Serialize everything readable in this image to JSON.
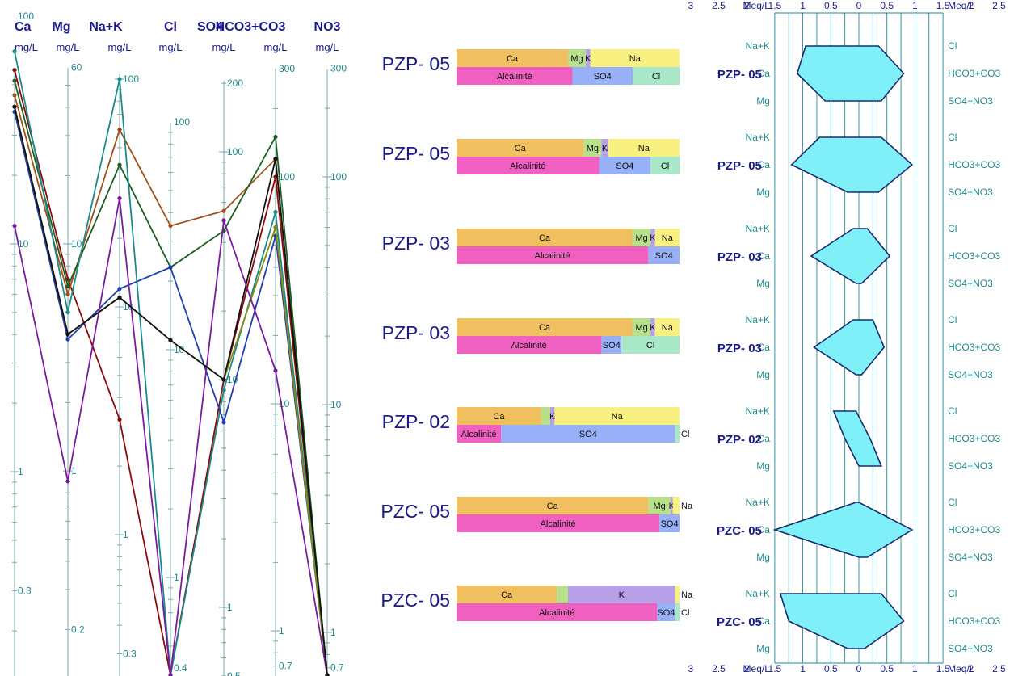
{
  "chart_data": [
    {
      "type": "line",
      "columns": [
        {
          "name": "Ca",
          "unit": "mg/L",
          "ticks": [
            {
              "v": 100,
              "label": "100"
            },
            {
              "v": 10,
              "label": "10"
            },
            {
              "v": 1,
              "label": "1"
            },
            {
              "v": 0.3,
              "label": "0.3"
            }
          ]
        },
        {
          "name": "Mg",
          "unit": "mg/L",
          "ticks": [
            {
              "v": 60,
              "label": "60"
            },
            {
              "v": 10,
              "label": "10"
            },
            {
              "v": 1,
              "label": "1"
            },
            {
              "v": 0.2,
              "label": "0.2"
            }
          ]
        },
        {
          "name": "Na+K",
          "unit": "mg/L",
          "ticks": [
            {
              "v": 100,
              "label": "100"
            },
            {
              "v": 10,
              "label": "10"
            },
            {
              "v": 1,
              "label": "1"
            },
            {
              "v": 0.3,
              "label": "0.3"
            }
          ]
        },
        {
          "name": "Cl",
          "unit": "mg/L",
          "ticks": [
            {
              "v": 100,
              "label": "100"
            },
            {
              "v": 10,
              "label": "10"
            },
            {
              "v": 1,
              "label": "1"
            },
            {
              "v": 0.4,
              "label": "0.4"
            }
          ]
        },
        {
          "name": "SO4",
          "unit": "mg/L",
          "ticks": [
            {
              "v": 200,
              "label": "200"
            },
            {
              "v": 100,
              "label": "100"
            },
            {
              "v": 10,
              "label": "10"
            },
            {
              "v": 1,
              "label": "1"
            },
            {
              "v": 0.5,
              "label": "0.5"
            }
          ]
        },
        {
          "name": "HCO3+CO3",
          "unit": "mg/L",
          "ticks": [
            {
              "v": 300,
              "label": "300"
            },
            {
              "v": 100,
              "label": "100"
            },
            {
              "v": 10,
              "label": "10"
            },
            {
              "v": 1,
              "label": "1"
            },
            {
              "v": 0.7,
              "label": "0.7"
            }
          ]
        },
        {
          "name": "NO3",
          "unit": "mg/L",
          "ticks": [
            {
              "v": 300,
              "label": "300"
            },
            {
              "v": 100,
              "label": "100"
            },
            {
              "v": 10,
              "label": "10"
            },
            {
              "v": 1,
              "label": "1"
            },
            {
              "v": 0.7,
              "label": "0.7"
            }
          ]
        }
      ],
      "series": [
        {
          "color": "#8b0a0a",
          "values": [
            58,
            7,
            3.2,
            0.33,
            10,
            100,
            0.5
          ]
        },
        {
          "color": "#a0501a",
          "values": [
            45,
            6,
            60,
            35,
            55,
            120,
            0.5
          ]
        },
        {
          "color": "#1b5e20",
          "values": [
            52,
            6.5,
            42,
            23,
            45,
            150,
            0.5
          ]
        },
        {
          "color": "#1a8a8a",
          "values": [
            70,
            5,
            100,
            0.32,
            9,
            70,
            0.5
          ]
        },
        {
          "color": "#1f3fb0",
          "values": [
            38,
            3.8,
            12,
            23,
            6.5,
            55,
            0.5
          ]
        },
        {
          "color": "#8a8a10",
          "values": [
            40,
            4,
            11,
            11,
            10,
            60,
            0.5
          ]
        },
        {
          "color": "#7a1aa0",
          "values": [
            12,
            0.9,
            30,
            0.3,
            50,
            14,
            0.5
          ]
        },
        {
          "color": "#111111",
          "values": [
            40,
            4,
            11,
            11,
            10,
            120,
            0.5
          ]
        }
      ]
    },
    {
      "type": "bar",
      "samples": [
        {
          "name": "PZP- 05",
          "cations": [
            {
              "label": "Ca",
              "value": 50,
              "color": "#f0c060"
            },
            {
              "label": "Mg",
              "value": 8,
              "color": "#b8e08a"
            },
            {
              "label": "K",
              "value": 2,
              "color": "#b8a0e8"
            },
            {
              "label": "Na",
              "value": 40,
              "color": "#f8f080"
            }
          ],
          "anions": [
            {
              "label": "Alcalinité",
              "value": 52,
              "color": "#f060c0"
            },
            {
              "label": "SO4",
              "value": 27,
              "color": "#98b0f8"
            },
            {
              "label": "Cl",
              "value": 21,
              "color": "#a8e8c8"
            }
          ]
        },
        {
          "name": "PZP- 05",
          "cations": [
            {
              "label": "Ca",
              "value": 57,
              "color": "#f0c060"
            },
            {
              "label": "Mg",
              "value": 8,
              "color": "#b8e08a"
            },
            {
              "label": "K",
              "value": 3,
              "color": "#b8a0e8"
            },
            {
              "label": "Na",
              "value": 32,
              "color": "#f8f080"
            }
          ],
          "anions": [
            {
              "label": "Alcalinité",
              "value": 64,
              "color": "#f060c0"
            },
            {
              "label": "SO4",
              "value": 23,
              "color": "#98b0f8"
            },
            {
              "label": "Cl",
              "value": 13,
              "color": "#a8e8c8"
            }
          ]
        },
        {
          "name": "PZP- 03",
          "cations": [
            {
              "label": "Ca",
              "value": 79,
              "color": "#f0c060"
            },
            {
              "label": "Mg",
              "value": 8,
              "color": "#b8e08a"
            },
            {
              "label": "K",
              "value": 2,
              "color": "#b8a0e8"
            },
            {
              "label": "Na",
              "value": 11,
              "color": "#f8f080"
            }
          ],
          "anions": [
            {
              "label": "Alcalinité",
              "value": 86,
              "color": "#f060c0"
            },
            {
              "label": "SO4",
              "value": 14,
              "color": "#98b0f8"
            }
          ]
        },
        {
          "name": "PZP- 03",
          "cations": [
            {
              "label": "Ca",
              "value": 79,
              "color": "#f0c060"
            },
            {
              "label": "Mg",
              "value": 8,
              "color": "#b8e08a"
            },
            {
              "label": "K",
              "value": 2,
              "color": "#b8a0e8"
            },
            {
              "label": "Na",
              "value": 11,
              "color": "#f8f080"
            }
          ],
          "anions": [
            {
              "label": "Alcalinité",
              "value": 65,
              "color": "#f060c0"
            },
            {
              "label": "SO4",
              "value": 9,
              "color": "#98b0f8"
            },
            {
              "label": "Cl",
              "value": 26,
              "color": "#a8e8c8"
            }
          ]
        },
        {
          "name": "PZP- 02",
          "cations": [
            {
              "label": "Ca",
              "value": 38,
              "color": "#f0c060"
            },
            {
              "label": "Mg",
              "value": 4,
              "color": "#b8e08a"
            },
            {
              "label": "K",
              "value": 2,
              "color": "#b8a0e8"
            },
            {
              "label": "Na",
              "value": 56,
              "color": "#f8f080"
            }
          ],
          "anions": [
            {
              "label": "Alcalinité",
              "value": 20,
              "color": "#f060c0"
            },
            {
              "label": "SO4",
              "value": 78,
              "color": "#98b0f8"
            },
            {
              "label": "Cl",
              "value": 2,
              "color": "#a8e8c8"
            }
          ]
        },
        {
          "name": "PZC- 05",
          "cations": [
            {
              "label": "Ca",
              "value": 86,
              "color": "#f0c060"
            },
            {
              "label": "Mg",
              "value": 10,
              "color": "#b8e08a"
            },
            {
              "label": "K",
              "value": 1,
              "color": "#b8a0e8"
            },
            {
              "label": "Na",
              "value": 3,
              "color": "#f8f080"
            }
          ],
          "anions": [
            {
              "label": "Alcalinité",
              "value": 91,
              "color": "#f060c0"
            },
            {
              "label": "SO4",
              "value": 9,
              "color": "#98b0f8"
            }
          ]
        },
        {
          "name": "PZC- 05",
          "cations": [
            {
              "label": "Ca",
              "value": 45,
              "color": "#f0c060"
            },
            {
              "label": "Mg",
              "value": 5,
              "color": "#b8e08a"
            },
            {
              "label": "K",
              "value": 48,
              "color": "#b8a0e8"
            },
            {
              "label": "Na",
              "value": 2,
              "color": "#f8f080"
            }
          ],
          "anions": [
            {
              "label": "Alcalinité",
              "value": 90,
              "color": "#f060c0"
            },
            {
              "label": "SO4",
              "value": 8,
              "color": "#98b0f8"
            },
            {
              "label": "Cl",
              "value": 2,
              "color": "#a8e8c8"
            }
          ]
        }
      ]
    },
    {
      "type": "stiff",
      "axis_label": "Meq/L",
      "ticks": [
        "3",
        "2.5",
        "2",
        "1.5",
        "1",
        "0.5",
        "0",
        "0.5",
        "1",
        "1.5",
        "2",
        "2.5",
        "3"
      ],
      "left_ions": [
        "Na+K",
        "Ca",
        "Mg"
      ],
      "right_ions": [
        "Cl",
        "HCO3+CO3",
        "SO4+NO3"
      ],
      "fill_color": "#7ff0f8",
      "samples": [
        {
          "name": "PZP- 05",
          "cations": [
            1.9,
            2.2,
            1.2
          ],
          "anions": [
            0.7,
            1.6,
            0.8
          ]
        },
        {
          "name": "PZP- 05",
          "cations": [
            1.4,
            2.4,
            0.4
          ],
          "anions": [
            0.8,
            1.9,
            0.7
          ]
        },
        {
          "name": "PZP- 03",
          "cations": [
            0.2,
            1.7,
            0.1
          ],
          "anions": [
            0.3,
            1.1,
            0.1
          ]
        },
        {
          "name": "PZP- 03",
          "cations": [
            0.2,
            1.6,
            0.1
          ],
          "anions": [
            0.5,
            0.9,
            0.1
          ]
        },
        {
          "name": "PZP- 02",
          "cations": [
            0.9,
            0.5,
            0.0
          ],
          "anions": [
            -0.1,
            0.4,
            0.8
          ]
        },
        {
          "name": "PZC- 05",
          "cations": [
            0.1,
            3.0,
            0.0
          ],
          "anions": [
            0.0,
            1.9,
            0.3
          ]
        },
        {
          "name": "PZC- 05",
          "cations": [
            2.8,
            2.5,
            0.4
          ],
          "anions": [
            0.8,
            1.6,
            0.2
          ]
        }
      ]
    }
  ]
}
